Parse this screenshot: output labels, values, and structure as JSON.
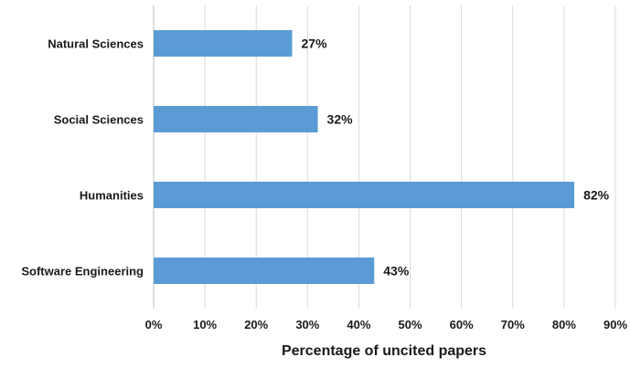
{
  "chart_data": {
    "type": "bar",
    "orientation": "horizontal",
    "categories": [
      "Natural Sciences",
      "Social Sciences",
      "Humanities",
      "Software Engineering"
    ],
    "values": [
      27,
      32,
      82,
      43
    ],
    "value_labels": [
      "27%",
      "32%",
      "82%",
      "43%"
    ],
    "xlabel": "Percentage of uncited papers",
    "ylabel": "",
    "title": "",
    "xlim": [
      0,
      90
    ],
    "x_ticks": [
      0,
      10,
      20,
      30,
      40,
      50,
      60,
      70,
      80,
      90
    ],
    "x_tick_labels": [
      "0%",
      "10%",
      "20%",
      "30%",
      "40%",
      "50%",
      "60%",
      "70%",
      "80%",
      "90%"
    ],
    "grid": "vertical",
    "legend": "none",
    "bar_color": "#5B9BD5",
    "grid_color": "#D9D9D9"
  }
}
